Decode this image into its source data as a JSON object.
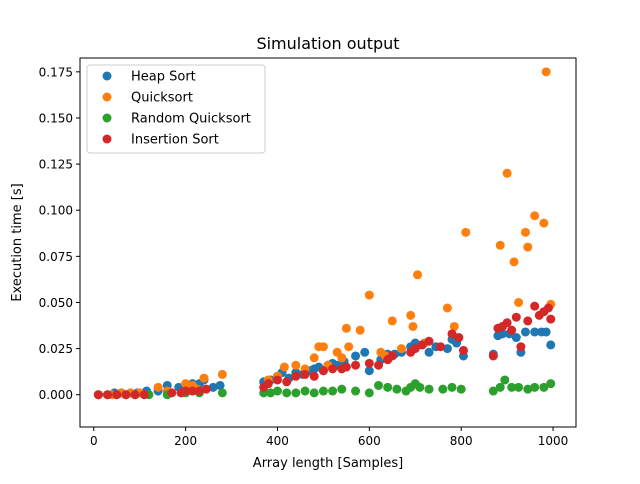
{
  "chart_data": {
    "type": "scatter",
    "title": "Simulation output",
    "xlabel": "Array length [Samples]",
    "ylabel": "Execution time [s]",
    "xlim": [
      -30,
      1050
    ],
    "ylim": [
      -0.0175,
      0.1825
    ],
    "xticks": [
      0,
      200,
      400,
      600,
      800,
      1000
    ],
    "yticks": [
      0.0,
      0.025,
      0.05,
      0.075,
      0.1,
      0.125,
      0.15,
      0.175
    ],
    "xtick_labels": [
      "0",
      "200",
      "400",
      "600",
      "800",
      "1000"
    ],
    "ytick_labels": [
      "0.000",
      "0.025",
      "0.050",
      "0.075",
      "0.100",
      "0.125",
      "0.150",
      "0.175"
    ],
    "legend_position": "upper-left",
    "grid": false,
    "series": [
      {
        "name": "Heap Sort",
        "color": "#1f77b4",
        "points": [
          [
            10,
            0.0
          ],
          [
            30,
            0.0
          ],
          [
            45,
            0.001
          ],
          [
            60,
            0.001
          ],
          [
            80,
            0.001
          ],
          [
            95,
            0.001
          ],
          [
            115,
            0.002
          ],
          [
            140,
            0.002
          ],
          [
            160,
            0.005
          ],
          [
            185,
            0.004
          ],
          [
            200,
            0.005
          ],
          [
            215,
            0.006
          ],
          [
            230,
            0.006
          ],
          [
            240,
            0.008
          ],
          [
            260,
            0.004
          ],
          [
            275,
            0.005
          ],
          [
            370,
            0.007
          ],
          [
            385,
            0.008
          ],
          [
            400,
            0.01
          ],
          [
            410,
            0.012
          ],
          [
            425,
            0.009
          ],
          [
            440,
            0.012
          ],
          [
            455,
            0.011
          ],
          [
            470,
            0.013
          ],
          [
            480,
            0.014
          ],
          [
            490,
            0.015
          ],
          [
            500,
            0.013
          ],
          [
            510,
            0.016
          ],
          [
            520,
            0.017
          ],
          [
            530,
            0.016
          ],
          [
            545,
            0.018
          ],
          [
            570,
            0.021
          ],
          [
            590,
            0.023
          ],
          [
            600,
            0.013
          ],
          [
            625,
            0.019
          ],
          [
            640,
            0.022
          ],
          [
            655,
            0.022
          ],
          [
            670,
            0.023
          ],
          [
            690,
            0.026
          ],
          [
            700,
            0.028
          ],
          [
            715,
            0.027
          ],
          [
            730,
            0.023
          ],
          [
            745,
            0.026
          ],
          [
            770,
            0.025
          ],
          [
            780,
            0.03
          ],
          [
            790,
            0.028
          ],
          [
            805,
            0.021
          ],
          [
            870,
            0.022
          ],
          [
            880,
            0.032
          ],
          [
            890,
            0.033
          ],
          [
            905,
            0.033
          ],
          [
            920,
            0.031
          ],
          [
            930,
            0.023
          ],
          [
            940,
            0.034
          ],
          [
            960,
            0.034
          ],
          [
            975,
            0.034
          ],
          [
            985,
            0.034
          ],
          [
            995,
            0.027
          ]
        ]
      },
      {
        "name": "Quicksort",
        "color": "#ff7f0e",
        "points": [
          [
            10,
            0.0
          ],
          [
            40,
            0.0
          ],
          [
            60,
            0.001
          ],
          [
            80,
            0.001
          ],
          [
            100,
            0.001
          ],
          [
            140,
            0.004
          ],
          [
            160,
            0.002
          ],
          [
            200,
            0.006
          ],
          [
            215,
            0.005
          ],
          [
            225,
            0.003
          ],
          [
            240,
            0.009
          ],
          [
            280,
            0.011
          ],
          [
            380,
            0.008
          ],
          [
            400,
            0.01
          ],
          [
            415,
            0.015
          ],
          [
            440,
            0.016
          ],
          [
            460,
            0.014
          ],
          [
            480,
            0.02
          ],
          [
            490,
            0.026
          ],
          [
            500,
            0.026
          ],
          [
            510,
            0.016
          ],
          [
            530,
            0.023
          ],
          [
            540,
            0.02
          ],
          [
            550,
            0.036
          ],
          [
            555,
            0.026
          ],
          [
            580,
            0.035
          ],
          [
            600,
            0.054
          ],
          [
            625,
            0.023
          ],
          [
            635,
            0.021
          ],
          [
            650,
            0.04
          ],
          [
            670,
            0.025
          ],
          [
            690,
            0.043
          ],
          [
            695,
            0.037
          ],
          [
            705,
            0.065
          ],
          [
            720,
            0.028
          ],
          [
            770,
            0.047
          ],
          [
            785,
            0.037
          ],
          [
            810,
            0.088
          ],
          [
            885,
            0.081
          ],
          [
            900,
            0.12
          ],
          [
            915,
            0.072
          ],
          [
            925,
            0.05
          ],
          [
            940,
            0.088
          ],
          [
            945,
            0.08
          ],
          [
            960,
            0.097
          ],
          [
            980,
            0.093
          ],
          [
            985,
            0.175
          ],
          [
            995,
            0.049
          ]
        ]
      },
      {
        "name": "Random Quicksort",
        "color": "#2ca02c",
        "points": [
          [
            10,
            0.0
          ],
          [
            30,
            0.0
          ],
          [
            50,
            0.0
          ],
          [
            70,
            0.0
          ],
          [
            90,
            0.0
          ],
          [
            120,
            0.0
          ],
          [
            160,
            0.0
          ],
          [
            200,
            0.001
          ],
          [
            230,
            0.001
          ],
          [
            280,
            0.001
          ],
          [
            370,
            0.001
          ],
          [
            385,
            0.001
          ],
          [
            400,
            0.002
          ],
          [
            420,
            0.001
          ],
          [
            440,
            0.001
          ],
          [
            460,
            0.002
          ],
          [
            480,
            0.001
          ],
          [
            500,
            0.002
          ],
          [
            520,
            0.002
          ],
          [
            540,
            0.003
          ],
          [
            570,
            0.002
          ],
          [
            600,
            0.001
          ],
          [
            620,
            0.005
          ],
          [
            640,
            0.004
          ],
          [
            660,
            0.003
          ],
          [
            680,
            0.002
          ],
          [
            690,
            0.004
          ],
          [
            700,
            0.006
          ],
          [
            710,
            0.004
          ],
          [
            730,
            0.003
          ],
          [
            760,
            0.003
          ],
          [
            780,
            0.004
          ],
          [
            800,
            0.003
          ],
          [
            870,
            0.002
          ],
          [
            885,
            0.004
          ],
          [
            895,
            0.008
          ],
          [
            910,
            0.004
          ],
          [
            925,
            0.004
          ],
          [
            945,
            0.003
          ],
          [
            960,
            0.004
          ],
          [
            980,
            0.004
          ],
          [
            995,
            0.006
          ]
        ]
      },
      {
        "name": "Insertion Sort",
        "color": "#d62728",
        "points": [
          [
            10,
            0.0
          ],
          [
            30,
            0.0
          ],
          [
            50,
            0.0
          ],
          [
            70,
            0.0
          ],
          [
            90,
            0.0
          ],
          [
            110,
            0.0
          ],
          [
            170,
            0.001
          ],
          [
            190,
            0.001
          ],
          [
            200,
            0.002
          ],
          [
            215,
            0.002
          ],
          [
            230,
            0.002
          ],
          [
            245,
            0.003
          ],
          [
            370,
            0.004
          ],
          [
            380,
            0.006
          ],
          [
            400,
            0.008
          ],
          [
            420,
            0.007
          ],
          [
            440,
            0.01
          ],
          [
            460,
            0.011
          ],
          [
            480,
            0.01
          ],
          [
            500,
            0.013
          ],
          [
            520,
            0.014
          ],
          [
            540,
            0.014
          ],
          [
            550,
            0.015
          ],
          [
            570,
            0.016
          ],
          [
            600,
            0.017
          ],
          [
            620,
            0.016
          ],
          [
            640,
            0.019
          ],
          [
            650,
            0.021
          ],
          [
            690,
            0.023
          ],
          [
            700,
            0.025
          ],
          [
            715,
            0.027
          ],
          [
            730,
            0.029
          ],
          [
            755,
            0.026
          ],
          [
            780,
            0.033
          ],
          [
            795,
            0.031
          ],
          [
            805,
            0.024
          ],
          [
            870,
            0.021
          ],
          [
            880,
            0.036
          ],
          [
            890,
            0.037
          ],
          [
            900,
            0.039
          ],
          [
            910,
            0.035
          ],
          [
            920,
            0.042
          ],
          [
            930,
            0.026
          ],
          [
            945,
            0.04
          ],
          [
            960,
            0.048
          ],
          [
            970,
            0.043
          ],
          [
            980,
            0.045
          ],
          [
            990,
            0.047
          ],
          [
            995,
            0.041
          ]
        ]
      }
    ]
  }
}
